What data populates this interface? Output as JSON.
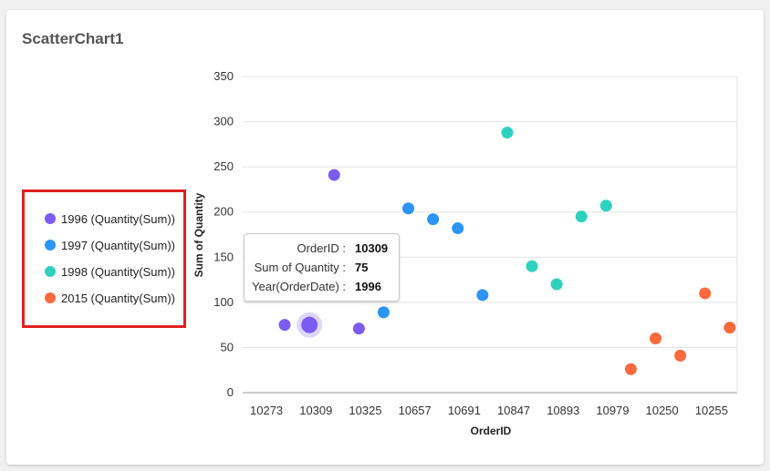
{
  "widget": {
    "title": "ScatterChart1"
  },
  "legend": {
    "items": [
      {
        "label": "1996 (Quantity(Sum))",
        "color": "#7b5cf0"
      },
      {
        "label": "1997 (Quantity(Sum))",
        "color": "#2b95f5"
      },
      {
        "label": "1998 (Quantity(Sum))",
        "color": "#2ed1be"
      },
      {
        "label": "2015 (Quantity(Sum))",
        "color": "#fb6a3c"
      }
    ]
  },
  "tooltip": {
    "rows": [
      {
        "label": "OrderID :",
        "value": "10309"
      },
      {
        "label": "Sum of Quantity :",
        "value": "75"
      },
      {
        "label": "Year(OrderDate) :",
        "value": "1996"
      }
    ]
  },
  "chart_data": {
    "type": "scatter",
    "title": "",
    "xlabel": "OrderID",
    "ylabel": "Sum of Quantity",
    "ylim": [
      0,
      350
    ],
    "yticks": [
      0,
      50,
      100,
      150,
      200,
      250,
      300,
      350
    ],
    "x_tick_labels": [
      "10273",
      "10309",
      "10325",
      "10657",
      "10691",
      "10847",
      "10893",
      "10979",
      "10250",
      "10255"
    ],
    "grid": true,
    "legend_position": "left",
    "highlighted_point": {
      "series": "1996 (Quantity(Sum))",
      "x": "10309",
      "y": 75
    },
    "series": [
      {
        "name": "1996 (Quantity(Sum))",
        "color": "#7b5cf0",
        "points": [
          {
            "x": 0.85,
            "y": 75
          },
          {
            "x": 1.35,
            "y": 75
          },
          {
            "x": 1.85,
            "y": 241
          },
          {
            "x": 2.35,
            "y": 71
          }
        ]
      },
      {
        "name": "1997 (Quantity(Sum))",
        "color": "#2b95f5",
        "points": [
          {
            "x": 2.85,
            "y": 89
          },
          {
            "x": 3.35,
            "y": 204
          },
          {
            "x": 3.85,
            "y": 192
          },
          {
            "x": 4.35,
            "y": 182
          },
          {
            "x": 4.85,
            "y": 108
          }
        ]
      },
      {
        "name": "1998 (Quantity(Sum))",
        "color": "#2ed1be",
        "points": [
          {
            "x": 5.35,
            "y": 288
          },
          {
            "x": 5.85,
            "y": 140
          },
          {
            "x": 6.35,
            "y": 120
          },
          {
            "x": 6.85,
            "y": 195
          },
          {
            "x": 7.35,
            "y": 207
          }
        ]
      },
      {
        "name": "2015 (Quantity(Sum))",
        "color": "#fb6a3c",
        "points": [
          {
            "x": 7.85,
            "y": 26
          },
          {
            "x": 8.35,
            "y": 60
          },
          {
            "x": 8.85,
            "y": 41
          },
          {
            "x": 9.35,
            "y": 110
          },
          {
            "x": 9.85,
            "y": 72
          }
        ]
      }
    ]
  }
}
